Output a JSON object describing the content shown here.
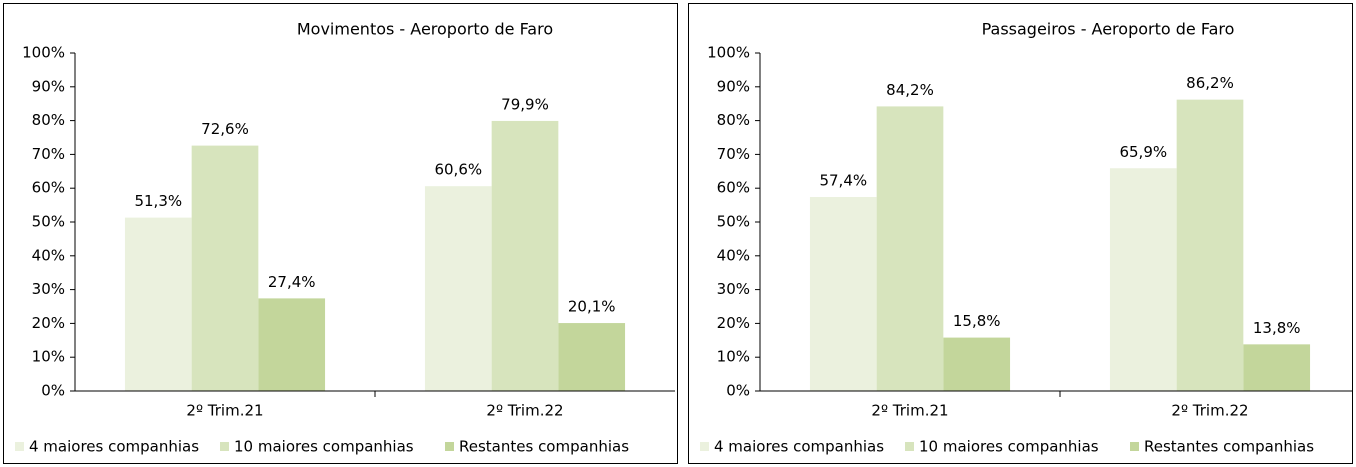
{
  "chart_data": [
    {
      "type": "bar",
      "title": "Movimentos - Aeroporto de Faro",
      "categories": [
        "2º Trim.21",
        "2º Trim.22"
      ],
      "series": [
        {
          "name": "4 maiores companhias",
          "color": "#ebf1de",
          "values": [
            51.3,
            60.6
          ],
          "value_labels": [
            "51,3%",
            "60,6%"
          ]
        },
        {
          "name": "10 maiores companhias",
          "color": "#d7e4bd",
          "values": [
            72.6,
            79.9
          ],
          "value_labels": [
            "72,6%",
            "79,9%"
          ]
        },
        {
          "name": "Restantes companhias",
          "color": "#c3d69b",
          "values": [
            27.4,
            20.1
          ],
          "value_labels": [
            "27,4%",
            "20,1%"
          ]
        }
      ],
      "ylim": [
        0,
        100
      ],
      "yticks": [
        {
          "value": 0,
          "label": "0%"
        },
        {
          "value": 10,
          "label": "10%"
        },
        {
          "value": 20,
          "label": "20%"
        },
        {
          "value": 30,
          "label": "30%"
        },
        {
          "value": 40,
          "label": "40%"
        },
        {
          "value": 50,
          "label": "50%"
        },
        {
          "value": 60,
          "label": "60%"
        },
        {
          "value": 70,
          "label": "70%"
        },
        {
          "value": 80,
          "label": "80%"
        },
        {
          "value": 90,
          "label": "90%"
        },
        {
          "value": 100,
          "label": "100%"
        }
      ],
      "legend": "bottom"
    },
    {
      "type": "bar",
      "title": "Passageiros - Aeroporto de Faro",
      "categories": [
        "2º Trim.21",
        "2º Trim.22"
      ],
      "series": [
        {
          "name": "4 maiores companhias",
          "color": "#ebf1de",
          "values": [
            57.4,
            65.9
          ],
          "value_labels": [
            "57,4%",
            "65,9%"
          ]
        },
        {
          "name": "10 maiores companhias",
          "color": "#d7e4bd",
          "values": [
            84.2,
            86.2
          ],
          "value_labels": [
            "84,2%",
            "86,2%"
          ]
        },
        {
          "name": "Restantes companhias",
          "color": "#c3d69b",
          "values": [
            15.8,
            13.8
          ],
          "value_labels": [
            "15,8%",
            "13,8%"
          ]
        }
      ],
      "ylim": [
        0,
        100
      ],
      "yticks": [
        {
          "value": 0,
          "label": "0%"
        },
        {
          "value": 10,
          "label": "10%"
        },
        {
          "value": 20,
          "label": "20%"
        },
        {
          "value": 30,
          "label": "30%"
        },
        {
          "value": 40,
          "label": "40%"
        },
        {
          "value": 50,
          "label": "50%"
        },
        {
          "value": 60,
          "label": "60%"
        },
        {
          "value": 70,
          "label": "70%"
        },
        {
          "value": 80,
          "label": "80%"
        },
        {
          "value": 90,
          "label": "90%"
        },
        {
          "value": 100,
          "label": "100%"
        }
      ],
      "legend": "bottom"
    }
  ]
}
